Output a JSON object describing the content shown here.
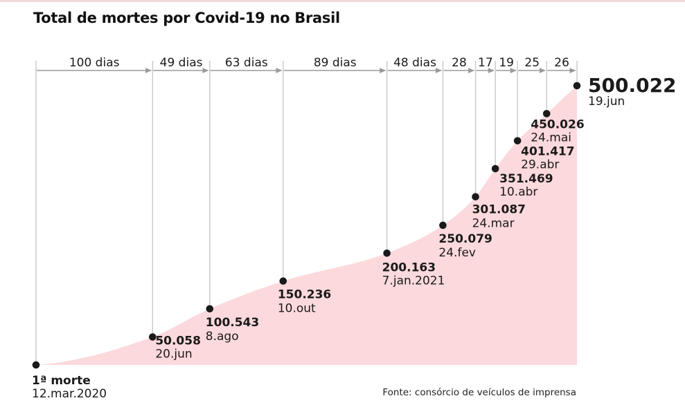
{
  "colors": {
    "area_fill": "#fcd9dc",
    "marker": "#1a1a1a",
    "grid_line": "#c8c8c8",
    "interval_arrow": "#9a9a9a",
    "text": "#1a1a1a",
    "top_rule": "#f0dada"
  },
  "chart_data": {
    "type": "area",
    "title": "Total de mortes por Covid-19 no Brasil",
    "source": "Fonte: consórcio de veículos de imprensa",
    "xlabel": "",
    "ylabel": "",
    "x_unit": "dias desde a 1ª morte",
    "xlim": [
      0,
      464
    ],
    "ylim": [
      0,
      500022
    ],
    "milestones": [
      {
        "day": 0,
        "deaths": 1,
        "value_label": "1ª morte",
        "date_label": "12.mar.2020"
      },
      {
        "day": 100,
        "deaths": 50058,
        "value_label": "50.058",
        "date_label": "20.jun"
      },
      {
        "day": 149,
        "deaths": 100543,
        "value_label": "100.543",
        "date_label": "8.ago"
      },
      {
        "day": 212,
        "deaths": 150236,
        "value_label": "150.236",
        "date_label": "10.out"
      },
      {
        "day": 301,
        "deaths": 200163,
        "value_label": "200.163",
        "date_label": "7.jan.2021"
      },
      {
        "day": 349,
        "deaths": 250079,
        "value_label": "250.079",
        "date_label": "24.fev"
      },
      {
        "day": 377,
        "deaths": 301087,
        "value_label": "301.087",
        "date_label": "24.mar"
      },
      {
        "day": 394,
        "deaths": 351469,
        "value_label": "351.469",
        "date_label": "10.abr"
      },
      {
        "day": 413,
        "deaths": 401417,
        "value_label": "401.417",
        "date_label": "29.abr"
      },
      {
        "day": 438,
        "deaths": 450026,
        "value_label": "450.026",
        "date_label": "24.mai"
      },
      {
        "day": 464,
        "deaths": 500022,
        "value_label": "500.022",
        "date_label": "19.jun"
      }
    ],
    "intervals": [
      "100 dias",
      "49 dias",
      "63 dias",
      "89 dias",
      "48 dias",
      "28",
      "17",
      "19",
      "25",
      "26"
    ]
  }
}
